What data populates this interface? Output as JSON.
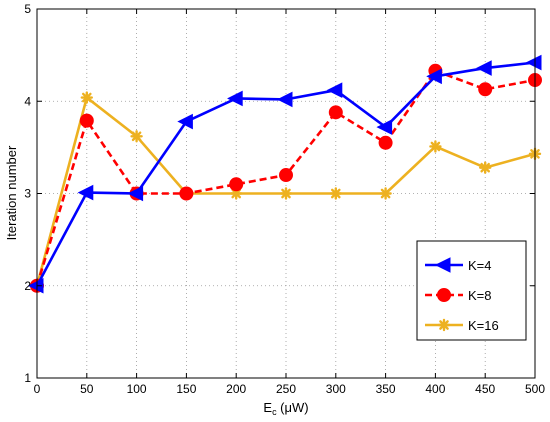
{
  "chart_data": {
    "type": "line",
    "title": "",
    "xlabel": "E",
    "xlabel_sub": "c",
    "xlabel_unit": " (μW)",
    "ylabel": "Iteration number",
    "xlim": [
      0,
      500
    ],
    "ylim": [
      1,
      5
    ],
    "x_ticks": [
      0,
      50,
      100,
      150,
      200,
      250,
      300,
      350,
      400,
      450,
      500
    ],
    "y_ticks": [
      1,
      2,
      3,
      4,
      5
    ],
    "x": [
      0,
      50,
      100,
      150,
      200,
      250,
      300,
      350,
      400,
      450,
      500
    ],
    "grid": true,
    "legend_position": "center-right",
    "series": [
      {
        "name": "K=4",
        "values": [
          2.0,
          3.01,
          3.0,
          3.78,
          4.03,
          4.02,
          4.12,
          3.72,
          4.27,
          4.36,
          4.42
        ],
        "color": "#0000ff",
        "line_style": "solid",
        "marker": "left-triangle"
      },
      {
        "name": "K=8",
        "values": [
          2.0,
          3.79,
          3.0,
          3.0,
          3.1,
          3.2,
          3.88,
          3.55,
          4.33,
          4.13,
          4.23
        ],
        "color": "#ff0000",
        "line_style": "dashed",
        "marker": "circle"
      },
      {
        "name": "K=16",
        "values": [
          2.0,
          4.04,
          3.62,
          3.0,
          3.0,
          3.0,
          3.0,
          3.0,
          3.51,
          3.28,
          3.43
        ],
        "color": "#edb120",
        "line_style": "solid",
        "marker": "asterisk"
      }
    ]
  }
}
